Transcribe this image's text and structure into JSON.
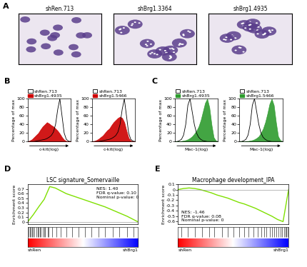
{
  "panel_a": {
    "panel": "A",
    "labels": [
      "shRen.713",
      "shBrg1.3364",
      "shBrg1.4935"
    ]
  },
  "chart_data": [
    {
      "panel": "B",
      "type": "line",
      "xlabel": "c-kit(log)",
      "ylabel": "Percentage of max",
      "x": [
        0,
        5,
        10,
        15,
        20,
        25,
        30,
        35,
        40,
        45,
        50,
        55,
        60,
        65,
        70,
        75,
        80,
        85,
        90,
        95,
        100
      ],
      "xlim": [
        0,
        100
      ],
      "ylim": [
        0,
        100
      ],
      "yticks": [
        0,
        20,
        40,
        60,
        80,
        100
      ],
      "tick_labels": "y",
      "series": [
        {
          "name": "shRen.713",
          "type": "line",
          "color": "#000000",
          "values": [
            0,
            0,
            0,
            0,
            1,
            2,
            3,
            4,
            5,
            7,
            10,
            14,
            22,
            40,
            75,
            100,
            60,
            20,
            5,
            1,
            0
          ]
        },
        {
          "name": "shBrg1.4935",
          "type": "area",
          "color": "#cc0000",
          "values": [
            0,
            2,
            5,
            10,
            15,
            20,
            28,
            35,
            40,
            45,
            42,
            38,
            35,
            30,
            25,
            18,
            10,
            4,
            1,
            0,
            0
          ]
        }
      ]
    },
    {
      "type": "line",
      "xlabel": "c-kit(log)",
      "ylabel": "Percentage of max",
      "x": [
        0,
        5,
        10,
        15,
        20,
        25,
        30,
        35,
        40,
        45,
        50,
        55,
        60,
        65,
        70,
        75,
        80,
        85,
        90,
        95,
        100
      ],
      "xlim": [
        0,
        100
      ],
      "ylim": [
        0,
        100
      ],
      "yticks": [
        0,
        20,
        40,
        60,
        80,
        100
      ],
      "tick_labels": "y",
      "series": [
        {
          "name": "shRen.713",
          "type": "line",
          "color": "#000000",
          "values": [
            0,
            0,
            0,
            0,
            1,
            2,
            3,
            4,
            5,
            7,
            10,
            14,
            22,
            40,
            75,
            100,
            60,
            20,
            5,
            1,
            0
          ]
        },
        {
          "name": "shBrg1.5466",
          "type": "area",
          "color": "#cc0000",
          "values": [
            0,
            1,
            3,
            6,
            10,
            14,
            20,
            26,
            30,
            38,
            45,
            50,
            55,
            58,
            55,
            45,
            25,
            8,
            2,
            0,
            0
          ]
        }
      ]
    },
    {
      "panel": "C",
      "type": "line",
      "xlabel": "Mac-1(log)",
      "ylabel": "Percentage of max",
      "x": [
        0,
        5,
        10,
        15,
        20,
        25,
        30,
        35,
        40,
        45,
        50,
        55,
        60,
        65,
        70,
        75,
        80,
        85,
        90,
        95,
        100
      ],
      "xlim": [
        0,
        100
      ],
      "ylim": [
        0,
        100
      ],
      "yticks": [
        0,
        20,
        40,
        60,
        80,
        100
      ],
      "tick_labels": "y",
      "series": [
        {
          "name": "shRen.713",
          "type": "line",
          "color": "#000000",
          "values": [
            0,
            0,
            2,
            5,
            15,
            40,
            85,
            100,
            70,
            40,
            20,
            10,
            5,
            2,
            1,
            0,
            0,
            0,
            0,
            0,
            0
          ]
        },
        {
          "name": "shBrg1.4935",
          "type": "area",
          "color": "#2e9b2e",
          "values": [
            0,
            0,
            0,
            1,
            2,
            3,
            5,
            8,
            12,
            18,
            25,
            35,
            50,
            70,
            90,
            100,
            80,
            40,
            10,
            2,
            0
          ]
        }
      ]
    },
    {
      "type": "line",
      "xlabel": "Mac-1(log)",
      "ylabel": "Percentage of max",
      "x": [
        0,
        5,
        10,
        15,
        20,
        25,
        30,
        35,
        40,
        45,
        50,
        55,
        60,
        65,
        70,
        75,
        80,
        85,
        90,
        95,
        100
      ],
      "xlim": [
        0,
        100
      ],
      "ylim": [
        0,
        100
      ],
      "yticks": [
        0,
        20,
        40,
        60,
        80,
        100
      ],
      "tick_labels": "y",
      "series": [
        {
          "name": "shRen.713",
          "type": "line",
          "color": "#000000",
          "values": [
            0,
            0,
            2,
            5,
            15,
            40,
            85,
            100,
            70,
            40,
            20,
            10,
            5,
            2,
            1,
            0,
            0,
            0,
            0,
            0,
            0
          ]
        },
        {
          "name": "shBrg1.5466",
          "type": "area",
          "color": "#2e9b2e",
          "values": [
            0,
            0,
            0,
            1,
            1,
            2,
            3,
            5,
            8,
            12,
            20,
            30,
            45,
            65,
            88,
            100,
            85,
            45,
            12,
            3,
            0
          ]
        }
      ]
    },
    {
      "panel": "D",
      "type": "line",
      "title": "LSC signature_Somervaille",
      "ylabel": "Enrichment score",
      "annotations": [
        "NES: 1.40",
        "FDR q-value: 0.10",
        "Nominal p-value: 0"
      ],
      "x": [
        0,
        0.05,
        0.1,
        0.15,
        0.2,
        0.25,
        0.3,
        0.35,
        0.4,
        0.45,
        0.5,
        0.55,
        0.6,
        0.65,
        0.7,
        0.75,
        0.8,
        0.85,
        0.9,
        0.95,
        1
      ],
      "values": [
        0,
        0.15,
        0.32,
        0.48,
        0.75,
        0.72,
        0.66,
        0.6,
        0.56,
        0.52,
        0.48,
        0.44,
        0.4,
        0.36,
        0.32,
        0.27,
        0.22,
        0.17,
        0.12,
        0.06,
        0
      ],
      "color": "#7fe000",
      "xlim": [
        0,
        1
      ],
      "ylim": [
        -0.05,
        0.8
      ],
      "yticks": [
        0,
        0.1,
        0.2,
        0.3,
        0.4,
        0.5,
        0.6,
        0.7
      ],
      "tick_labels": "y",
      "hits": [
        0.01,
        0.02,
        0.03,
        0.04,
        0.05,
        0.06,
        0.08,
        0.09,
        0.1,
        0.11,
        0.12,
        0.14,
        0.15,
        0.16,
        0.18,
        0.19,
        0.22,
        0.26,
        0.3,
        0.35,
        0.4,
        0.46,
        0.52,
        0.58,
        0.64,
        0.7,
        0.77,
        0.83,
        0.9,
        0.96
      ],
      "phenotype_labels": [
        "shRen",
        "shBrg1"
      ]
    },
    {
      "panel": "E",
      "type": "line",
      "title": "Macrophage development_IPA",
      "ylabel": "Enrichment score",
      "annotations": [
        "NES: -1.46",
        "FDR q-value: 0.08",
        "Nominal p-value: 0"
      ],
      "x": [
        0,
        0.05,
        0.1,
        0.15,
        0.2,
        0.25,
        0.3,
        0.35,
        0.4,
        0.45,
        0.5,
        0.55,
        0.6,
        0.65,
        0.7,
        0.75,
        0.8,
        0.85,
        0.9,
        0.95,
        1
      ],
      "values": [
        0,
        0.02,
        0.03,
        0.02,
        0,
        -0.03,
        -0.06,
        -0.1,
        -0.13,
        -0.16,
        -0.2,
        -0.24,
        -0.27,
        -0.31,
        -0.35,
        -0.4,
        -0.45,
        -0.5,
        -0.56,
        -0.6,
        0
      ],
      "color": "#7fe000",
      "xlim": [
        0,
        1
      ],
      "ylim": [
        -0.65,
        0.1
      ],
      "yticks": [
        -0.6,
        -0.5,
        -0.4,
        -0.3,
        -0.2,
        -0.1,
        0,
        0.1
      ],
      "tick_labels": "y",
      "hits": [
        0.03,
        0.09,
        0.15,
        0.22,
        0.28,
        0.33,
        0.4,
        0.45,
        0.5,
        0.55,
        0.6,
        0.64,
        0.68,
        0.72,
        0.75,
        0.78,
        0.8,
        0.83,
        0.85,
        0.87,
        0.89,
        0.91,
        0.93,
        0.94,
        0.96,
        0.97,
        0.98,
        0.99
      ],
      "phenotype_labels": [
        "shRen",
        "shBrg1"
      ]
    }
  ]
}
